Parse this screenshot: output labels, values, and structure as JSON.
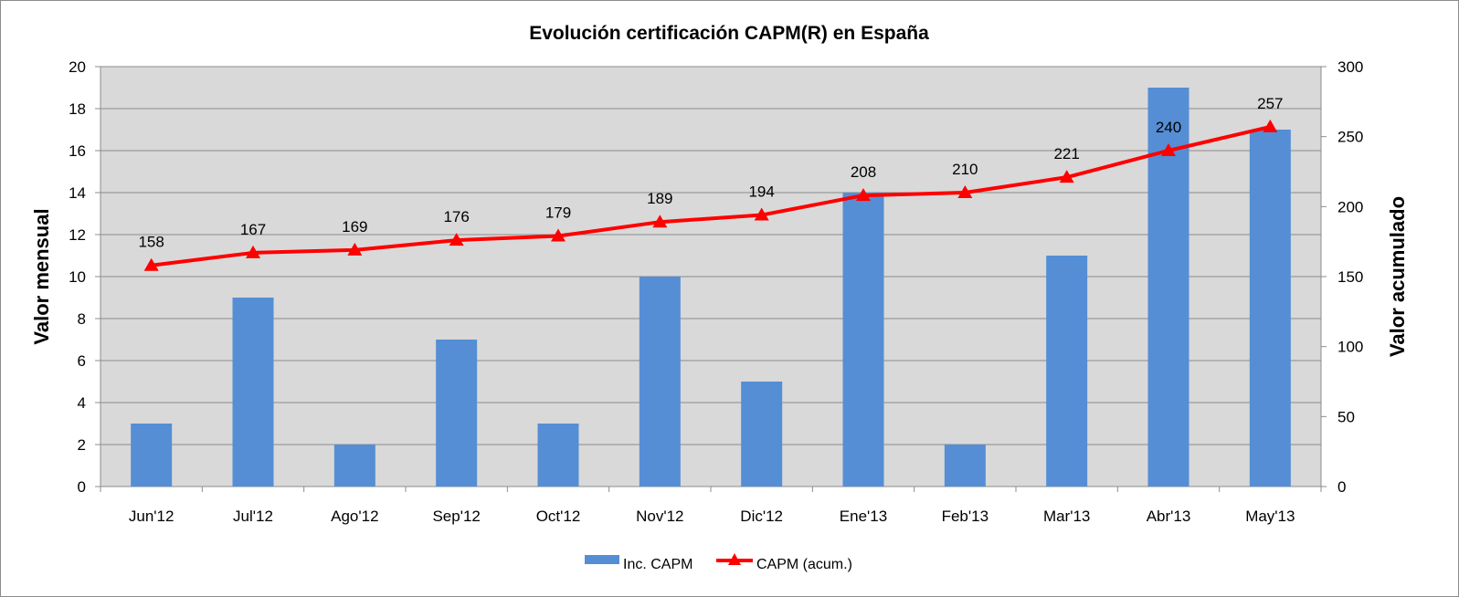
{
  "chart_data": {
    "type": "bar",
    "title": "Evolución certificación CAPM(R) en España",
    "categories": [
      "Jun'12",
      "Jul'12",
      "Ago'12",
      "Sep'12",
      "Oct'12",
      "Nov'12",
      "Dic'12",
      "Ene'13",
      "Feb'13",
      "Mar'13",
      "Abr'13",
      "May'13"
    ],
    "series": [
      {
        "name": "Inc. CAPM",
        "type": "bar",
        "axis": "left",
        "color": "#558ed5",
        "values": [
          3,
          9,
          2,
          7,
          3,
          10,
          5,
          14,
          2,
          11,
          19,
          17
        ]
      },
      {
        "name": "CAPM (acum.)",
        "type": "line",
        "axis": "right",
        "color": "#ff0000",
        "marker": "triangle",
        "values": [
          158,
          167,
          169,
          176,
          179,
          189,
          194,
          208,
          210,
          221,
          240,
          257
        ],
        "data_labels": true
      }
    ],
    "ylabel": "Valor mensual",
    "y2label": "Valor acumulado",
    "xlabel": "",
    "ylim": [
      0,
      20
    ],
    "yticks": [
      0,
      2,
      4,
      6,
      8,
      10,
      12,
      14,
      16,
      18,
      20
    ],
    "y2lim": [
      0,
      300
    ],
    "y2ticks": [
      0,
      50,
      100,
      150,
      200,
      250,
      300
    ],
    "grid": true,
    "plot_background": "#d9d9d9",
    "legend_position": "bottom"
  }
}
